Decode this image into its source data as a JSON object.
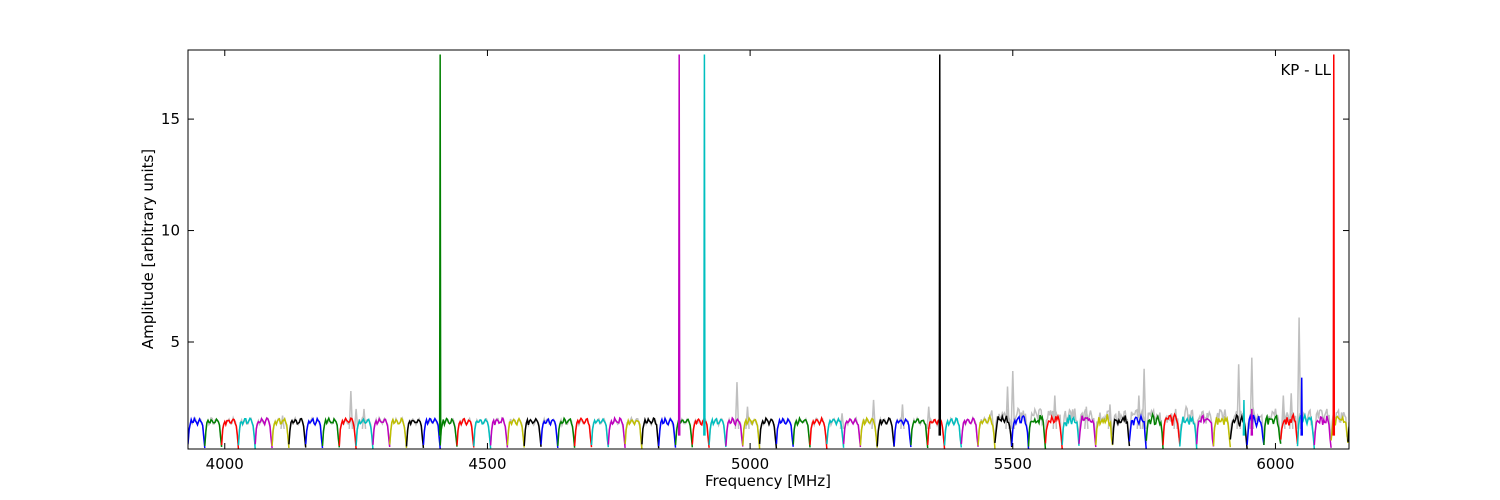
{
  "chart_data": {
    "type": "line",
    "title": "",
    "annotation": "KP - LL",
    "xlabel": "Frequency [MHz]",
    "ylabel": "Amplitude [arbitrary units]",
    "xlim": [
      3930,
      6140
    ],
    "ylim": [
      0.2,
      18.1
    ],
    "x_ticks": [
      4000,
      4500,
      5000,
      5500,
      6000
    ],
    "y_ticks": [
      5,
      10,
      15
    ],
    "grid": false,
    "legend": "none",
    "band_width_mhz": 32,
    "band_start_mhz": 3930,
    "background_trace_color": "#bfbfbf",
    "band_colors": [
      "#0000ff",
      "#008000",
      "#ff0000",
      "#00bfbf",
      "#bf00bf",
      "#bfbf00",
      "#000000"
    ],
    "band_peak_level": 1.25,
    "background_spikes": [
      {
        "x": 4110,
        "y": 1.7
      },
      {
        "x": 4240,
        "y": 2.8
      },
      {
        "x": 4250,
        "y": 2.0
      },
      {
        "x": 4265,
        "y": 2.0
      },
      {
        "x": 4975,
        "y": 3.2
      },
      {
        "x": 4995,
        "y": 2.1
      },
      {
        "x": 5175,
        "y": 1.8
      },
      {
        "x": 5235,
        "y": 2.4
      },
      {
        "x": 5290,
        "y": 2.2
      },
      {
        "x": 5340,
        "y": 2.1
      },
      {
        "x": 5490,
        "y": 3.0
      },
      {
        "x": 5500,
        "y": 3.7
      },
      {
        "x": 5580,
        "y": 2.6
      },
      {
        "x": 5640,
        "y": 2.1
      },
      {
        "x": 5685,
        "y": 2.2
      },
      {
        "x": 5740,
        "y": 2.6
      },
      {
        "x": 5750,
        "y": 3.8
      },
      {
        "x": 5810,
        "y": 2.0
      },
      {
        "x": 5930,
        "y": 4.0
      },
      {
        "x": 5955,
        "y": 4.3
      },
      {
        "x": 6015,
        "y": 2.6
      },
      {
        "x": 6030,
        "y": 2.7
      },
      {
        "x": 6045,
        "y": 6.1
      }
    ],
    "spikes": [
      {
        "x": 4410,
        "y": 17.9,
        "color": "#008000"
      },
      {
        "x": 4865,
        "y": 17.9,
        "color": "#bf00bf"
      },
      {
        "x": 4913,
        "y": 17.9,
        "color": "#00bfbf"
      },
      {
        "x": 5361,
        "y": 17.9,
        "color": "#000000"
      },
      {
        "x": 6111,
        "y": 17.9,
        "color": "#ff0000"
      },
      {
        "x": 5940,
        "y": 2.4,
        "color": "#00bfbf"
      },
      {
        "x": 6050,
        "y": 3.4,
        "color": "#0000ff"
      },
      {
        "x": 5955,
        "y": 2.0,
        "color": "#bf00bf"
      }
    ]
  }
}
